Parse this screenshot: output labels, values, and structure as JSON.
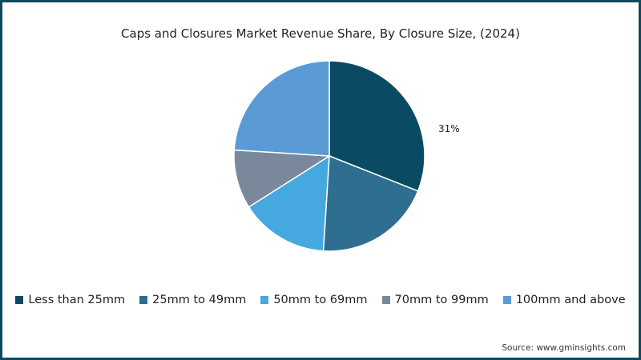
{
  "chart_data": {
    "type": "pie",
    "title": "Caps and Closures Market Revenue Share, By Closure Size, (2024)",
    "categories": [
      "Less than 25mm",
      "25mm to 49mm",
      "50mm to 69mm",
      "70mm to 99mm",
      "100mm and above"
    ],
    "values": [
      31,
      20,
      15,
      10,
      24
    ],
    "colors": [
      "#0b4a63",
      "#2e6e91",
      "#45a8de",
      "#7a889c",
      "#5b9bd5"
    ],
    "labels_shown": [
      {
        "category": "Less than 25mm",
        "text": "31%"
      }
    ],
    "legend_position": "bottom",
    "start_angle": "12 o'clock, clockwise"
  },
  "source": "Source: www.gminsights.com"
}
